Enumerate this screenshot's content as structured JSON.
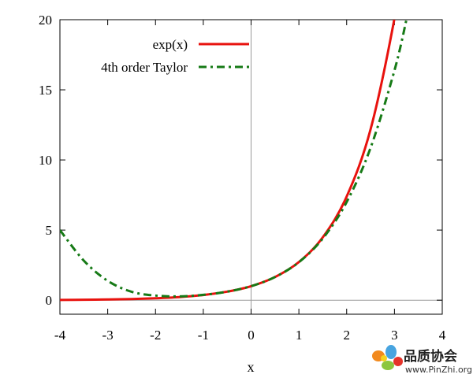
{
  "chart_data": {
    "type": "line",
    "title": "",
    "xlabel": "x",
    "ylabel": "",
    "xlim": [
      -4,
      4
    ],
    "ylim": [
      -1,
      20
    ],
    "grid": false,
    "legend_position": "top-center",
    "x_ticks": [
      -4,
      -3,
      -2,
      -1,
      0,
      1,
      2,
      3,
      4
    ],
    "x_tick_labels": [
      "-4",
      "-3",
      "-2",
      "-1",
      "0",
      "1",
      "2",
      "3",
      "4"
    ],
    "y_ticks": [
      0,
      5,
      10,
      15,
      20
    ],
    "y_tick_labels": [
      "0",
      "5",
      "10",
      "15",
      "20"
    ],
    "x": [
      -4,
      -3.5,
      -3,
      -2.5,
      -2,
      -1.5,
      -1,
      -0.5,
      0,
      0.5,
      1,
      1.5,
      2,
      2.5,
      3,
      3.25
    ],
    "series": [
      {
        "name": "exp(x)",
        "color": "#e8120e",
        "style": "solid",
        "values": [
          0.02,
          0.03,
          0.05,
          0.08,
          0.14,
          0.22,
          0.37,
          0.61,
          1.0,
          1.65,
          2.72,
          4.48,
          7.39,
          12.18,
          20.09,
          25.79
        ]
      },
      {
        "name": "4th order Taylor",
        "color": "#167a16",
        "style": "dashdot",
        "values": [
          5.0,
          2.82,
          1.38,
          0.6,
          0.33,
          0.27,
          0.38,
          0.61,
          1.0,
          1.65,
          2.71,
          4.4,
          7.0,
          10.86,
          16.38,
          19.99
        ]
      }
    ]
  },
  "watermark": {
    "brand_cn": "品质协会",
    "url": "www.PinZhi.org"
  }
}
